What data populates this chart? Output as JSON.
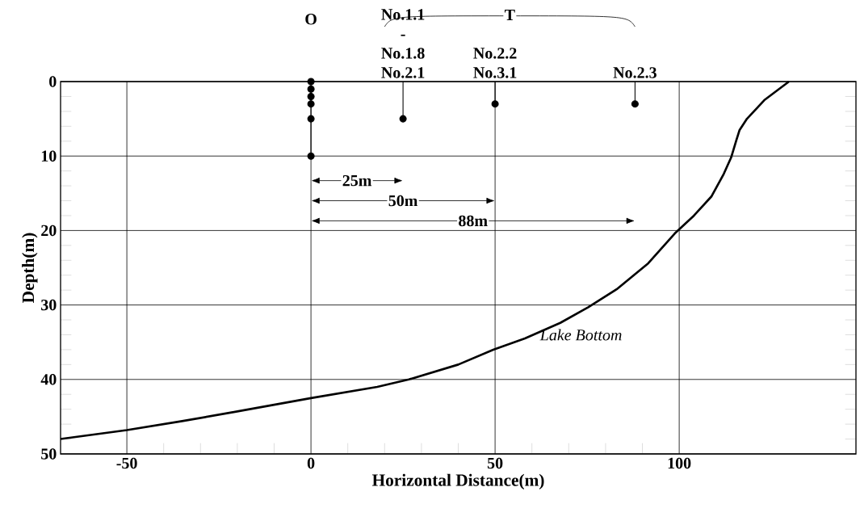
{
  "chart_data": {
    "type": "line",
    "xlabel": "Horizontal Distance(m)",
    "ylabel": "Depth(m)",
    "xlim": [
      -68,
      148
    ],
    "ylim": [
      50,
      0
    ],
    "xticks": [
      -50,
      0,
      50,
      100
    ],
    "yticks": [
      0,
      10,
      20,
      30,
      40,
      50
    ],
    "grid": true,
    "series": [
      {
        "color": "#000000",
        "line_style": "solid",
        "x": [
          -68,
          -50,
          -35,
          -20,
          0,
          18,
          26.6,
          40,
          49.5,
          58.1,
          67.7,
          75.3,
          83,
          91.6,
          98.8,
          104,
          108.8,
          112.1,
          114.1,
          115.5,
          116.4,
          118.4,
          123.1,
          129.8
        ],
        "values": [
          48,
          46.8,
          45.6,
          44.3,
          42.5,
          41,
          40,
          38,
          36,
          34.5,
          32.4,
          30.3,
          27.9,
          24.4,
          20.4,
          18,
          15.4,
          12.4,
          10.2,
          7.9,
          6.5,
          5,
          2.5,
          0
        ]
      },
      {
        "type": "lollipop",
        "color": "#000000",
        "marker": "circle",
        "x": [
          0,
          0,
          0,
          0,
          0,
          0,
          25,
          50,
          88
        ],
        "values": [
          0,
          1,
          2,
          3,
          5,
          10,
          5,
          3,
          3
        ]
      }
    ],
    "annotations": [
      "O",
      "T",
      "No.1.1 - No.1.8 No.2.1",
      "No.2.2 No.3.1",
      "No.2.3",
      "25m",
      "50m",
      "88m",
      {
        "text": "Lake Bottom",
        "x": 60,
        "y": 34
      }
    ]
  }
}
